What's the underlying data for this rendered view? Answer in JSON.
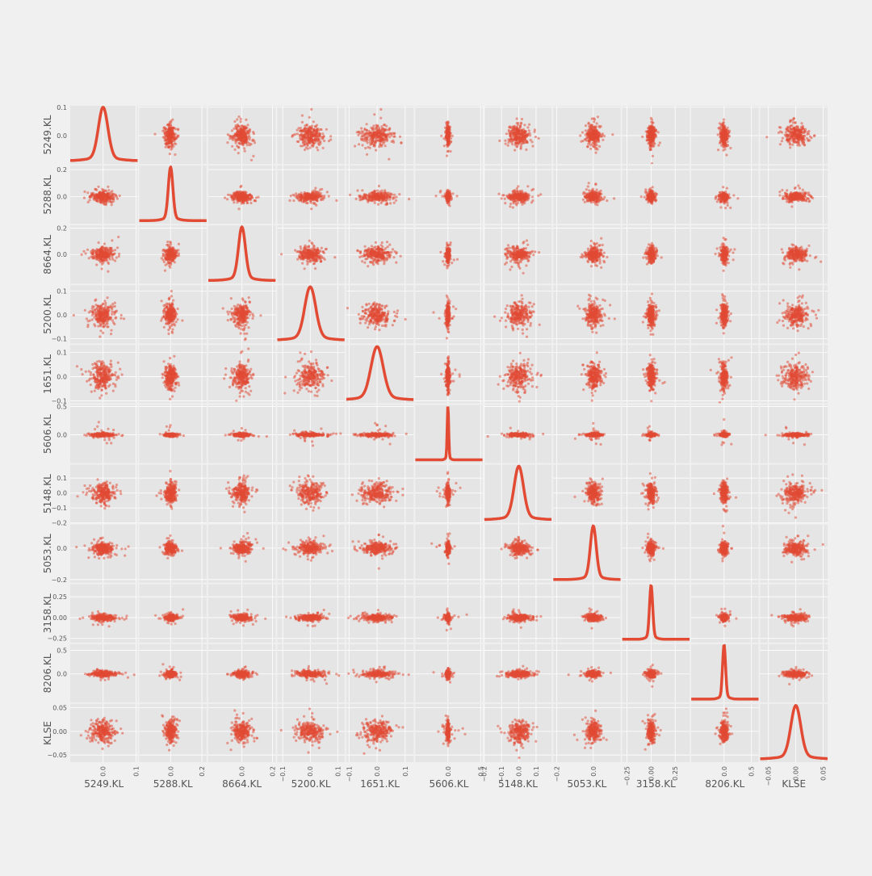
{
  "chart_data": {
    "type": "scatter_matrix",
    "diagonal": "kde",
    "variables": [
      "5249.KL",
      "5288.KL",
      "8664.KL",
      "5200.KL",
      "1651.KL",
      "5606.KL",
      "5148.KL",
      "5053.KL",
      "3158.KL",
      "8206.KL",
      "KLSE"
    ],
    "colors": {
      "background": "#f0f0f0",
      "panel": "#e5e5e5",
      "grid": "#ffffff",
      "points": "#e24a33",
      "text": "#555555"
    },
    "grid": true,
    "point_alpha": 0.5,
    "axes": [
      {
        "name": "5249.KL",
        "range": [
          -0.1,
          0.105
        ],
        "ticks": [
          0.0,
          0.1
        ],
        "tick_labels": [
          "0.0",
          "0.1"
        ],
        "std": 0.016,
        "outlier_spread": 0.06
      },
      {
        "name": "5288.KL",
        "range": [
          -0.2,
          0.23
        ],
        "ticks": [
          0.0,
          0.2
        ],
        "tick_labels": [
          "0.0",
          "0.2"
        ],
        "std": 0.016,
        "outlier_spread": 0.08
      },
      {
        "name": "8664.KL",
        "range": [
          -0.22,
          0.22
        ],
        "ticks": [
          0.0,
          0.2
        ],
        "tick_labels": [
          "0.0",
          "0.2"
        ],
        "std": 0.025,
        "outlier_spread": 0.12
      },
      {
        "name": "5200.KL",
        "range": [
          -0.12,
          0.125
        ],
        "ticks": [
          -0.1,
          0.0,
          0.1
        ],
        "tick_labels": [
          "−0.1",
          "0.0",
          "0.1"
        ],
        "std": 0.022,
        "outlier_spread": 0.08
      },
      {
        "name": "1651.KL",
        "range": [
          -0.11,
          0.13
        ],
        "ticks": [
          -0.1,
          0.0,
          0.1
        ],
        "tick_labels": [
          "−0.1",
          "0.0",
          "0.1"
        ],
        "std": 0.024,
        "outlier_spread": 0.08
      },
      {
        "name": "5606.KL",
        "range": [
          -0.5,
          0.53
        ],
        "ticks": [
          0.0,
          0.5
        ],
        "tick_labels": [
          "0.0",
          "0.5"
        ],
        "std": 0.012,
        "outlier_spread": 0.2
      },
      {
        "name": "5148.KL",
        "range": [
          -0.2,
          0.19
        ],
        "ticks": [
          -0.2,
          -0.1,
          0.0,
          0.1
        ],
        "tick_labels": [
          "−0.2",
          "−0.1",
          "0.0",
          "0.1"
        ],
        "std": 0.03,
        "outlier_spread": 0.1
      },
      {
        "name": "5053.KL",
        "range": [
          -0.22,
          0.15
        ],
        "ticks": [
          -0.2,
          0.0
        ],
        "tick_labels": [
          "−0.2",
          "0.0"
        ],
        "std": 0.018,
        "outlier_spread": 0.1
      },
      {
        "name": "3158.KL",
        "range": [
          -0.3,
          0.4
        ],
        "ticks": [
          -0.25,
          0.0,
          0.25
        ],
        "tick_labels": [
          "−0.25",
          "0.00",
          "0.25"
        ],
        "std": 0.018,
        "outlier_spread": 0.12
      },
      {
        "name": "8206.KL",
        "range": [
          -0.6,
          0.63
        ],
        "ticks": [
          0.0,
          0.5
        ],
        "tick_labels": [
          "0.0",
          "0.5"
        ],
        "std": 0.03,
        "outlier_spread": 0.2
      },
      {
        "name": "KLSE",
        "range": [
          -0.065,
          0.058
        ],
        "ticks": [
          -0.05,
          0.0,
          0.05
        ],
        "tick_labels": [
          "−0.05",
          "0.00",
          "0.05"
        ],
        "std": 0.01,
        "outlier_spread": 0.03
      }
    ]
  }
}
